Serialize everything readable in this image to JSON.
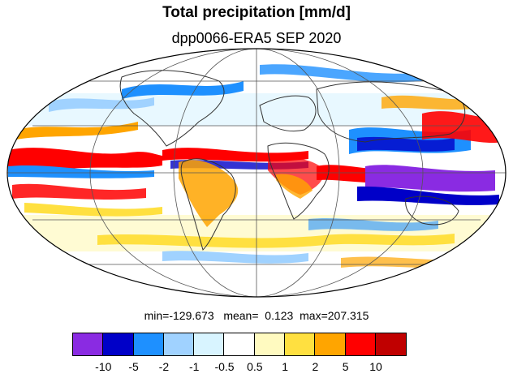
{
  "title": "Total precipitation [mm/d]",
  "subtitle": "dpp0066-ERA5 SEP 2020",
  "stats": {
    "min_label": "min=",
    "min_value": "-129.673",
    "mean_label": "mean=",
    "mean_value": "0.123",
    "max_label": "max=",
    "max_value": "207.315"
  },
  "colorbar": {
    "colors": [
      "#8a2be2",
      "#0000c8",
      "#1e90ff",
      "#a0d2ff",
      "#d8f4ff",
      "#ffffff",
      "#fffac0",
      "#ffe040",
      "#ffa500",
      "#ff0000",
      "#c00000"
    ],
    "ticks": [
      "-10",
      "-5",
      "-2",
      "-1",
      "-0.5",
      "0.5",
      "1",
      "2",
      "5",
      "10"
    ]
  },
  "map": {
    "projection": "mollweide",
    "ocean_color": "#ffffff",
    "graticule_color": "#555555",
    "coast_color": "#333333"
  }
}
